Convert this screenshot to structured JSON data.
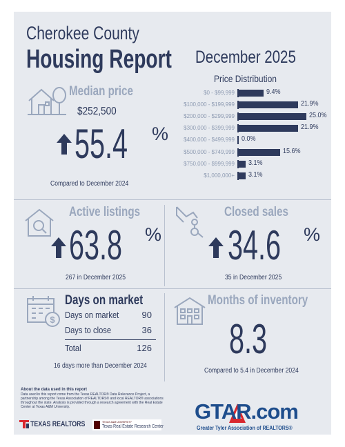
{
  "header": {
    "county": "Cherokee County",
    "report": "Housing Report",
    "month": "December 2025"
  },
  "median_price": {
    "title": "Median price",
    "price": "$252,500",
    "change": "55.4",
    "unit": "%",
    "compare": "Compared to December 2024",
    "icon": "house-tree-icon"
  },
  "chart_data": {
    "type": "bar",
    "title": "Price Distribution",
    "orientation": "horizontal",
    "categories": [
      "$0 - $99,999",
      "$100,000 - $199,999",
      "$200,000 - $299,999",
      "$300,000 - $399,999",
      "$400,000 - $499,999",
      "$500,000 - $749,999",
      "$750,000 - $999,999",
      "$1,000,000+"
    ],
    "values": [
      9.4,
      21.9,
      25.0,
      21.9,
      0.0,
      15.6,
      3.1,
      3.1
    ],
    "value_labels": [
      "9.4%",
      "21.9%",
      "25.0%",
      "21.9%",
      "0.0%",
      "15.6%",
      "3.1%",
      "3.1%"
    ],
    "xlim": [
      0,
      25
    ],
    "color": "#2e3a5c"
  },
  "active_listings": {
    "title": "Active listings",
    "change": "63.8",
    "unit": "%",
    "note": "267 in December 2025",
    "icon": "house-magnifier-icon"
  },
  "closed_sales": {
    "title": "Closed sales",
    "change": "34.6",
    "unit": "%",
    "note": "35 in December 2025",
    "icon": "hand-keys-icon"
  },
  "days_on_market": {
    "title": "Days on market",
    "rows": [
      {
        "label": "Days on market",
        "value": "90"
      },
      {
        "label": "Days to close",
        "value": "36"
      }
    ],
    "total_label": "Total",
    "total_value": "126",
    "note": "16 days more than December 2024",
    "icon": "calendar-dollar-icon"
  },
  "months_inventory": {
    "title": "Months of inventory",
    "value": "8.3",
    "note": "Compared to 5.4 in December 2024",
    "icon": "building-icon"
  },
  "footer": {
    "about_title": "About the data used in this report",
    "about_text": "Data used in this report come from the Texas REALTOR® Data Relevance Project, a partnership among the Texas Association of REALTORS® and local REALTOR® associations throughout the state. Analysis is provided through a research agreement with the Real Estate Center at Texas A&M University.",
    "texas_realtors": "TEXAS REALTORS",
    "tamu_small": "TEXAS A&M UNIVERSITY",
    "tamu_center": "Texas Real Estate Research Center",
    "gtar_logo": "GTAR.com",
    "gtar_tagline": "Greater Tyler Association of REALTORS®"
  },
  "colors": {
    "navy": "#2e3a5c",
    "steel": "#9aa7bd",
    "panel": "#e7eaef",
    "gtar_red": "#d9272e",
    "gtar_blue": "#1e4d8c"
  }
}
